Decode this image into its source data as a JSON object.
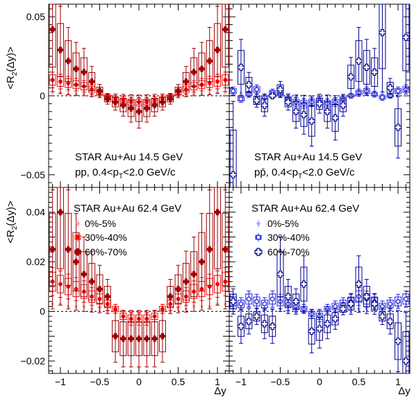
{
  "colors": {
    "pp_light": "#f4a0a0",
    "pp_mid": "#ff0000",
    "pp_dark": "#a00000",
    "ppbar_light": "#a0a0ff",
    "ppbar_mid": "#2020e0",
    "ppbar_dark": "#000090"
  },
  "axis_labels": {
    "y_top": "<R2(Δy)>",
    "y_bottom": "<R2(Δy)>",
    "x_left": "Δy",
    "x_right": "Δy"
  },
  "ticks": {
    "x": [
      "−1",
      "−0.5",
      "0",
      "0.5",
      "1"
    ],
    "y_top": [
      "0.05",
      "0",
      "−0.05"
    ],
    "y_bottom": [
      "0.04",
      "0.02",
      "0",
      "−0.02"
    ]
  },
  "annotations": {
    "tl_line1": "STAR Au+Au 14.5 GeV",
    "tl_line2": "pp, 0.4<pT<2.0 GeV/c",
    "tr_line1": "STAR Au+Au 14.5 GeV",
    "tr_line2": "pp̄, 0.4<pT<2.0 GeV/c",
    "bl_title": "STAR Au+Au 62.4 GeV",
    "br_title": "STAR Au+Au 62.4 GeV"
  },
  "legend": {
    "s1": "0%-5%",
    "s2": "30%-40%",
    "s3": "60%-70%"
  },
  "chart_data": [
    {
      "type": "scatter",
      "panel": "top-left",
      "xlim": [
        -1.15,
        1.15
      ],
      "ylim": [
        -0.058,
        0.058
      ],
      "x": [
        -1.1,
        -1.0,
        -0.9,
        -0.8,
        -0.7,
        -0.6,
        -0.5,
        -0.4,
        -0.3,
        -0.2,
        -0.1,
        0.0,
        0.1,
        0.2,
        0.3,
        0.4,
        0.5,
        0.6,
        0.7,
        0.8,
        0.9,
        1.0,
        1.1
      ],
      "series": [
        {
          "values": [
            0.002,
            0.002,
            0.001,
            0.001,
            0.001,
            0.001,
            0.0,
            -0.001,
            -0.001,
            -0.002,
            -0.002,
            -0.002,
            -0.002,
            -0.002,
            -0.001,
            -0.001,
            0.0,
            0.001,
            0.001,
            0.001,
            0.001,
            0.002,
            0.002
          ]
        },
        {
          "values": [
            0.01,
            0.009,
            0.008,
            0.007,
            0.006,
            0.004,
            0.002,
            0.0,
            -0.002,
            -0.003,
            -0.004,
            -0.004,
            -0.004,
            -0.003,
            -0.002,
            0.0,
            0.002,
            0.004,
            0.006,
            0.007,
            0.008,
            0.009,
            0.01
          ]
        },
        {
          "values": [
            0.042,
            0.029,
            0.022,
            0.017,
            0.015,
            0.009,
            0.003,
            -0.002,
            -0.004,
            -0.006,
            -0.008,
            -0.01,
            -0.008,
            -0.006,
            -0.004,
            -0.002,
            0.003,
            0.009,
            0.015,
            0.017,
            0.022,
            0.029,
            0.042
          ]
        }
      ]
    },
    {
      "type": "scatter",
      "panel": "top-right",
      "xlim": [
        -1.15,
        1.15
      ],
      "ylim": [
        -0.058,
        0.058
      ],
      "x": [
        -1.1,
        -1.0,
        -0.9,
        -0.8,
        -0.7,
        -0.6,
        -0.5,
        -0.4,
        -0.3,
        -0.2,
        -0.1,
        0.0,
        0.1,
        0.2,
        0.3,
        0.4,
        0.5,
        0.6,
        0.7,
        0.8,
        0.9,
        1.0,
        1.1
      ],
      "series": [
        {
          "values": [
            0.003,
            0.002,
            0.002,
            0.001,
            0.001,
            0.001,
            0.0,
            0.0,
            -0.001,
            -0.002,
            -0.002,
            -0.002,
            -0.002,
            -0.002,
            -0.001,
            0.0,
            0.0,
            0.001,
            0.001,
            0.002,
            0.002,
            0.003,
            0.003
          ]
        },
        {
          "values": [
            0.003,
            -0.002,
            0.001,
            0.004,
            -0.001,
            0.002,
            0.001,
            -0.002,
            -0.004,
            -0.005,
            -0.004,
            -0.003,
            -0.005,
            -0.004,
            -0.002,
            0.0,
            0.002,
            0.003,
            0.001,
            -0.001,
            0.0,
            0.003,
            0.004
          ]
        },
        {
          "values": [
            -0.05,
            0.018,
            0.007,
            -0.003,
            -0.006,
            0.0,
            0.004,
            -0.004,
            -0.01,
            -0.012,
            -0.016,
            -0.005,
            -0.01,
            -0.014,
            -0.006,
            0.012,
            0.022,
            0.018,
            0.015,
            0.04,
            0.005,
            -0.02,
            0.037
          ]
        }
      ]
    },
    {
      "type": "scatter",
      "panel": "bottom-left",
      "xlim": [
        -1.15,
        1.15
      ],
      "ylim": [
        -0.025,
        0.05
      ],
      "x": [
        -1.1,
        -1.0,
        -0.9,
        -0.8,
        -0.7,
        -0.6,
        -0.5,
        -0.4,
        -0.3,
        -0.2,
        -0.1,
        0.0,
        0.1,
        0.2,
        0.3,
        0.4,
        0.5,
        0.6,
        0.7,
        0.8,
        0.9,
        1.0,
        1.1
      ],
      "series": [
        {
          "values": [
            0.003,
            0.003,
            0.002,
            0.002,
            0.002,
            0.001,
            0.001,
            0.0,
            0.0,
            0.0,
            -0.001,
            -0.001,
            -0.001,
            0.0,
            0.0,
            0.0,
            0.001,
            0.001,
            0.002,
            0.002,
            0.002,
            0.003,
            0.003
          ]
        },
        {
          "values": [
            0.012,
            0.011,
            0.01,
            0.009,
            0.008,
            0.006,
            0.005,
            0.003,
            0.001,
            -0.002,
            -0.003,
            -0.003,
            -0.003,
            -0.002,
            0.001,
            0.003,
            0.005,
            0.006,
            0.008,
            0.009,
            0.01,
            0.011,
            0.012
          ]
        },
        {
          "values": [
            0.025,
            0.04,
            0.025,
            0.02,
            0.015,
            0.012,
            0.009,
            0.006,
            -0.01,
            -0.011,
            -0.011,
            -0.011,
            -0.011,
            -0.011,
            -0.01,
            0.006,
            0.009,
            0.012,
            0.015,
            0.02,
            0.025,
            0.04,
            0.025
          ]
        }
      ]
    },
    {
      "type": "scatter",
      "panel": "bottom-right",
      "xlim": [
        -1.15,
        1.15
      ],
      "ylim": [
        -0.025,
        0.05
      ],
      "x": [
        -1.1,
        -1.0,
        -0.9,
        -0.8,
        -0.7,
        -0.6,
        -0.5,
        -0.4,
        -0.3,
        -0.2,
        -0.1,
        0.0,
        0.1,
        0.2,
        0.3,
        0.4,
        0.5,
        0.6,
        0.7,
        0.8,
        0.9,
        1.0,
        1.1
      ],
      "series": [
        {
          "values": [
            0.002,
            0.002,
            0.002,
            0.001,
            0.001,
            0.001,
            0.001,
            0.0,
            0.0,
            0.0,
            0.0,
            -0.001,
            0.0,
            0.0,
            0.0,
            0.0,
            0.001,
            0.001,
            0.001,
            0.001,
            0.002,
            0.002,
            0.002
          ]
        },
        {
          "values": [
            0.004,
            0.003,
            0.005,
            0.004,
            0.003,
            0.005,
            0.004,
            0.003,
            0.002,
            0.001,
            -0.001,
            -0.002,
            0.001,
            0.002,
            0.003,
            0.004,
            0.006,
            0.005,
            0.004,
            0.002,
            0.003,
            0.004,
            0.005
          ]
        },
        {
          "values": [
            0.004,
            -0.006,
            -0.004,
            -0.002,
            -0.005,
            -0.006,
            0.015,
            0.006,
            0.004,
            0.011,
            -0.008,
            -0.007,
            -0.005,
            -0.003,
            0.001,
            0.003,
            0.011,
            0.006,
            0.003,
            -0.002,
            -0.004,
            -0.012,
            -0.02
          ]
        }
      ]
    }
  ]
}
